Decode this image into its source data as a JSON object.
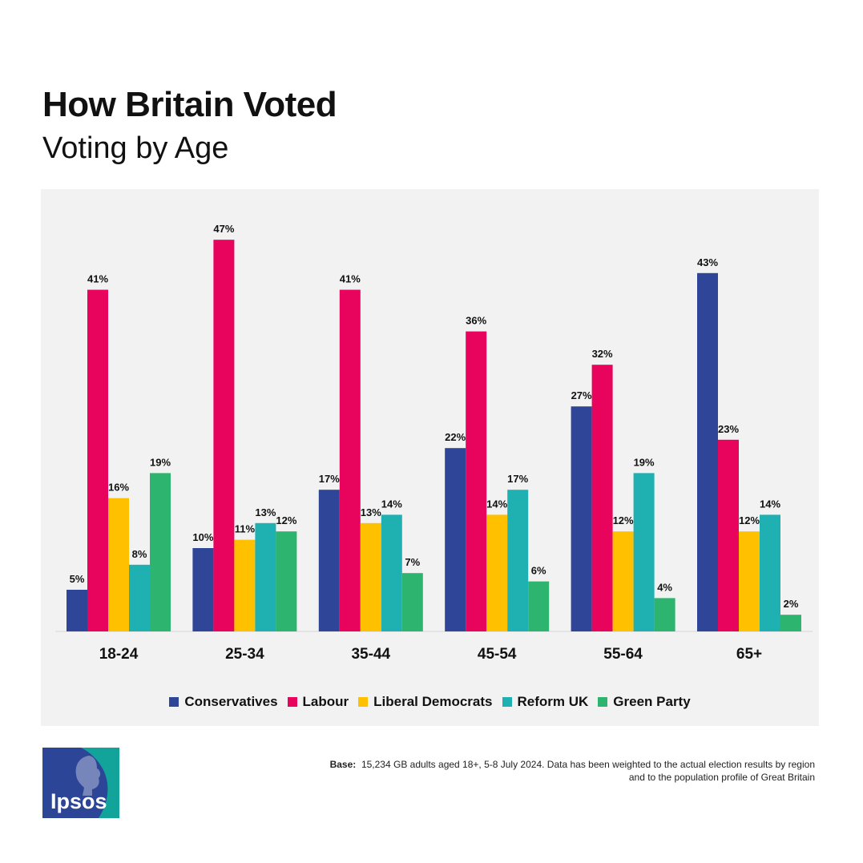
{
  "header": {
    "title": "How Britain Voted",
    "subtitle": "Voting by Age"
  },
  "footer": {
    "base_label": "Base:",
    "base_line1": "15,234 GB adults aged 18+, 5-8 July 2024. Data has been weighted  to the actual election results by region",
    "base_line2": "and to the population profile of Great Britain",
    "logo_text": "Ipsos"
  },
  "colors": {
    "Conservatives": "#2e4598",
    "Labour": "#e8045c",
    "Liberal Democrats": "#ffc000",
    "Reform UK": "#1fb1b1",
    "Green Party": "#2db46e",
    "logo_blue": "#2d4597",
    "logo_teal": "#12a49a"
  },
  "chart_data": {
    "type": "bar",
    "title": "How Britain Voted",
    "subtitle": "Voting by Age",
    "xlabel": "",
    "ylabel": "",
    "ylim": [
      0,
      50
    ],
    "grid": false,
    "legend_position": "bottom",
    "value_suffix": "%",
    "categories": [
      "18-24",
      "25-34",
      "35-44",
      "45-54",
      "55-64",
      "65+"
    ],
    "series": [
      {
        "name": "Conservatives",
        "values": [
          5,
          10,
          17,
          22,
          27,
          43
        ]
      },
      {
        "name": "Labour",
        "values": [
          41,
          47,
          41,
          36,
          32,
          23
        ]
      },
      {
        "name": "Liberal Democrats",
        "values": [
          16,
          11,
          13,
          14,
          12,
          12
        ]
      },
      {
        "name": "Reform UK",
        "values": [
          8,
          13,
          14,
          17,
          19,
          14
        ]
      },
      {
        "name": "Green Party",
        "values": [
          19,
          12,
          7,
          6,
          4,
          2
        ]
      }
    ]
  }
}
